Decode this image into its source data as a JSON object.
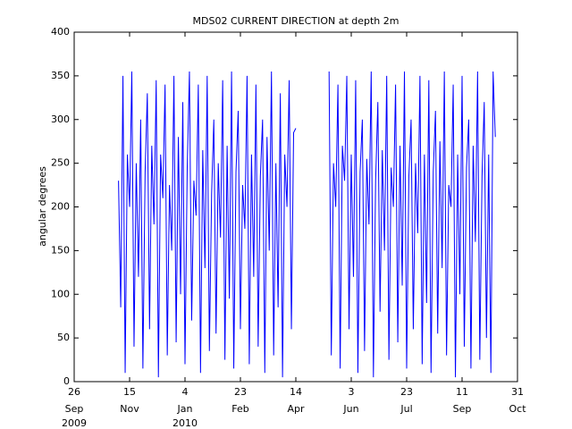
{
  "chart_data": {
    "type": "line",
    "title": "MDS02 CURRENT DIRECTION at depth 2m",
    "ylabel": "angular degrees",
    "x": [
      "2009-11-05",
      "2009-11-07",
      "2009-11-09",
      "2009-11-11",
      "2009-11-13",
      "2009-11-15",
      "2009-11-17",
      "2009-11-19",
      "2009-11-21",
      "2009-11-23",
      "2009-11-25",
      "2009-11-27",
      "2009-11-29",
      "2009-12-01",
      "2009-12-03",
      "2009-12-05",
      "2009-12-07",
      "2009-12-09",
      "2009-12-11",
      "2009-12-13",
      "2009-12-15",
      "2009-12-17",
      "2009-12-19",
      "2009-12-21",
      "2009-12-23",
      "2009-12-25",
      "2009-12-27",
      "2009-12-29",
      "2009-12-31",
      "2010-01-02",
      "2010-01-04",
      "2010-01-06",
      "2010-01-08",
      "2010-01-10",
      "2010-01-12",
      "2010-01-14",
      "2010-01-16",
      "2010-01-18",
      "2010-01-20",
      "2010-01-22",
      "2010-01-24",
      "2010-01-26",
      "2010-01-28",
      "2010-01-30",
      "2010-02-01",
      "2010-02-03",
      "2010-02-05",
      "2010-02-07",
      "2010-02-09",
      "2010-02-11",
      "2010-02-13",
      "2010-02-15",
      "2010-02-17",
      "2010-02-19",
      "2010-02-21",
      "2010-02-23",
      "2010-02-25",
      "2010-02-27",
      "2010-03-01",
      "2010-03-03",
      "2010-03-05",
      "2010-03-07",
      "2010-03-09",
      "2010-03-11",
      "2010-03-13",
      "2010-03-15",
      "2010-03-17",
      "2010-03-19",
      "2010-03-21",
      "2010-03-23",
      "2010-03-25",
      "2010-03-27",
      "2010-03-29",
      "2010-03-31",
      "2010-04-02",
      "2010-04-04",
      "2010-04-06",
      "2010-04-08",
      "2010-04-10",
      "2010-04-12",
      "2010-04-14",
      "2010-04-28",
      "2010-05-14",
      "2010-05-16",
      "2010-05-18",
      "2010-05-20",
      "2010-05-22",
      "2010-05-24",
      "2010-05-26",
      "2010-05-28",
      "2010-05-30",
      "2010-06-01",
      "2010-06-03",
      "2010-06-05",
      "2010-06-07",
      "2010-06-09",
      "2010-06-11",
      "2010-06-13",
      "2010-06-15",
      "2010-06-17",
      "2010-06-19",
      "2010-06-21",
      "2010-06-23",
      "2010-06-25",
      "2010-06-27",
      "2010-06-29",
      "2010-07-01",
      "2010-07-03",
      "2010-07-05",
      "2010-07-07",
      "2010-07-09",
      "2010-07-11",
      "2010-07-13",
      "2010-07-15",
      "2010-07-17",
      "2010-07-19",
      "2010-07-21",
      "2010-07-23",
      "2010-07-25",
      "2010-07-27",
      "2010-07-29",
      "2010-07-31",
      "2010-08-02",
      "2010-08-04",
      "2010-08-06",
      "2010-08-08",
      "2010-08-10",
      "2010-08-12",
      "2010-08-14",
      "2010-08-16",
      "2010-08-18",
      "2010-08-20",
      "2010-08-22",
      "2010-08-24",
      "2010-08-26",
      "2010-08-28",
      "2010-08-30",
      "2010-09-01",
      "2010-09-03",
      "2010-09-05",
      "2010-09-07",
      "2010-09-09",
      "2010-09-11",
      "2010-09-13",
      "2010-09-15",
      "2010-09-17",
      "2010-09-19",
      "2010-09-21",
      "2010-09-23",
      "2010-09-25",
      "2010-09-27",
      "2010-09-29",
      "2010-10-01",
      "2010-10-03",
      "2010-10-05",
      "2010-10-07",
      "2010-10-09",
      "2010-10-11"
    ],
    "series": [
      {
        "color": "#0000ff",
        "values": [
          230,
          85,
          350,
          10,
          260,
          200,
          355,
          40,
          250,
          120,
          300,
          15,
          240,
          330,
          60,
          270,
          180,
          345,
          5,
          260,
          210,
          340,
          30,
          225,
          150,
          350,
          45,
          280,
          100,
          320,
          20,
          245,
          355,
          70,
          230,
          190,
          340,
          10,
          265,
          130,
          350,
          35,
          215,
          300,
          55,
          250,
          165,
          345,
          25,
          270,
          95,
          355,
          15,
          240,
          310,
          60,
          225,
          175,
          350,
          20,
          260,
          120,
          340,
          40,
          235,
          300,
          10,
          280,
          150,
          355,
          30,
          250,
          85,
          330,
          5,
          260,
          200,
          345,
          60,
          285,
          290,
          null,
          355,
          30,
          250,
          200,
          340,
          15,
          270,
          230,
          350,
          60,
          260,
          120,
          345,
          10,
          240,
          300,
          35,
          255,
          180,
          355,
          5,
          230,
          320,
          80,
          265,
          150,
          350,
          25,
          245,
          200,
          340,
          45,
          270,
          110,
          355,
          15,
          235,
          300,
          60,
          250,
          170,
          350,
          20,
          260,
          90,
          345,
          10,
          240,
          310,
          55,
          275,
          130,
          355,
          30,
          225,
          200,
          340,
          5,
          260,
          100,
          350,
          40,
          245,
          300,
          15,
          270,
          160,
          355,
          25,
          235,
          320,
          50,
          260,
          10,
          355,
          280
        ]
      }
    ],
    "xlim": [
      "2009-09-26",
      "2010-10-31"
    ],
    "xticks": [
      {
        "value": "2009-09-26",
        "label": "26",
        "month": "Sep",
        "year": "2009"
      },
      {
        "value": "2009-11-15",
        "label": "15",
        "month": "Nov"
      },
      {
        "value": "2010-01-04",
        "label": "4",
        "month": "Jan",
        "year": "2010"
      },
      {
        "value": "2010-02-23",
        "label": "23",
        "month": "Feb"
      },
      {
        "value": "2010-04-14",
        "label": "14",
        "month": "Apr"
      },
      {
        "value": "2010-06-03",
        "label": "3",
        "month": "Jun"
      },
      {
        "value": "2010-07-23",
        "label": "23",
        "month": "Jul"
      },
      {
        "value": "2010-09-11",
        "label": "11",
        "month": "Sep"
      },
      {
        "value": "2010-10-31",
        "label": "31",
        "month": "Oct"
      }
    ],
    "ylim": [
      0,
      400
    ],
    "yticks": [
      0,
      50,
      100,
      150,
      200,
      250,
      300,
      350,
      400
    ],
    "grid": false
  }
}
